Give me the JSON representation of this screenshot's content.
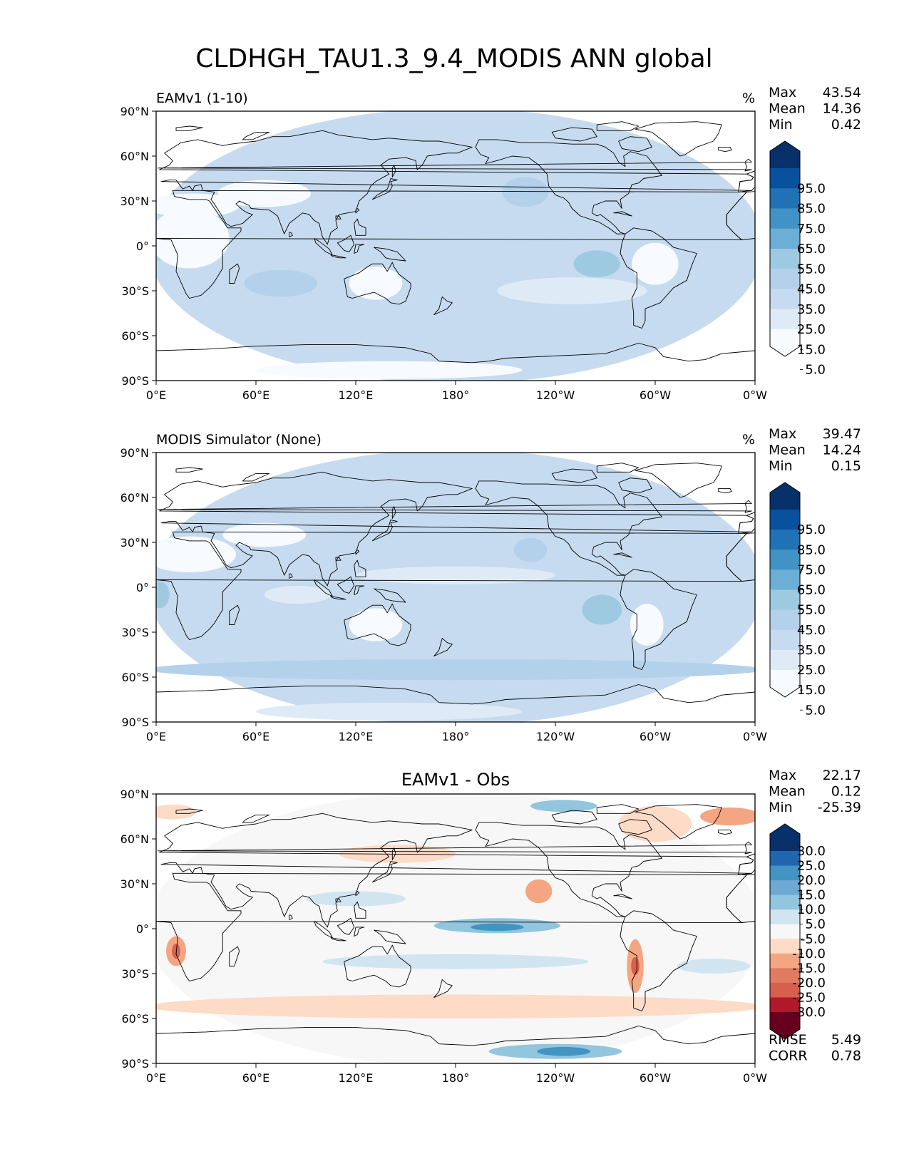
{
  "figure_title": "CLDHGH_TAU1.3_9.4_MODIS ANN global",
  "chart_data": [
    {
      "type": "heatmap",
      "title": "EAMv1 (1-10)",
      "units": "%",
      "stats": [
        {
          "label": "Max",
          "value": "43.54"
        },
        {
          "label": "Mean",
          "value": "14.36"
        },
        {
          "label": "Min",
          "value": "0.42"
        }
      ],
      "xticks": [
        "0°E",
        "60°E",
        "120°E",
        "180°",
        "120°W",
        "60°W",
        "0°W"
      ],
      "yticks": [
        "90°N",
        "60°N",
        "30°N",
        "0°",
        "30°S",
        "60°S",
        "90°S"
      ],
      "xlim": [
        0,
        360
      ],
      "ylim": [
        -90,
        90
      ],
      "colorbar": {
        "levels": [
          "95.0",
          "85.0",
          "75.0",
          "65.0",
          "55.0",
          "45.0",
          "35.0",
          "25.0",
          "15.0",
          "5.0"
        ],
        "colors": [
          "#08306b",
          "#08519c",
          "#2171b5",
          "#4292c6",
          "#6baed6",
          "#9ecae1",
          "#b3d1ea",
          "#c6dbef",
          "#deebf7",
          "#f7fbff"
        ],
        "extend": "both"
      },
      "fields": [
        {
          "lon": 180,
          "lat": 0,
          "rx": 185,
          "ry": 92,
          "color": "#c6dbef"
        },
        {
          "lon": 222,
          "lat": 36,
          "rx": 14,
          "ry": 10,
          "color": "#b3d1ea"
        },
        {
          "lon": 265,
          "lat": -12,
          "rx": 14,
          "ry": 9,
          "color": "#9ecae1"
        },
        {
          "lon": 75,
          "lat": -25,
          "rx": 22,
          "ry": 9,
          "color": "#b3d1ea"
        },
        {
          "lon": 2,
          "lat": 0,
          "rx": 8,
          "ry": 10,
          "color": "#b3d1ea"
        },
        {
          "lon": 20,
          "lat": 5,
          "rx": 24,
          "ry": 20,
          "color": "#f7fbff"
        },
        {
          "lon": 22,
          "lat": 27,
          "rx": 28,
          "ry": 8,
          "color": "#f7fbff"
        },
        {
          "lon": 65,
          "lat": 35,
          "rx": 28,
          "ry": 9,
          "color": "#f7fbff"
        },
        {
          "lon": 132,
          "lat": -25,
          "rx": 16,
          "ry": 11,
          "color": "#f7fbff"
        },
        {
          "lon": 300,
          "lat": -12,
          "rx": 14,
          "ry": 14,
          "color": "#f7fbff"
        },
        {
          "lon": 140,
          "lat": -83,
          "rx": 80,
          "ry": 6,
          "color": "#f7fbff"
        },
        {
          "lon": 250,
          "lat": -30,
          "rx": 45,
          "ry": 9,
          "color": "#deebf7"
        }
      ]
    },
    {
      "type": "heatmap",
      "title": "MODIS Simulator (None)",
      "units": "%",
      "stats": [
        {
          "label": "Max",
          "value": "39.47"
        },
        {
          "label": "Mean",
          "value": "14.24"
        },
        {
          "label": "Min",
          "value": "0.15"
        }
      ],
      "xticks": [
        "0°E",
        "60°E",
        "120°E",
        "180°",
        "120°W",
        "60°W",
        "0°W"
      ],
      "yticks": [
        "90°N",
        "60°N",
        "30°N",
        "0°",
        "30°S",
        "60°S",
        "90°S"
      ],
      "xlim": [
        0,
        360
      ],
      "ylim": [
        -90,
        90
      ],
      "colorbar": {
        "levels": [
          "95.0",
          "85.0",
          "75.0",
          "65.0",
          "55.0",
          "45.0",
          "35.0",
          "25.0",
          "15.0",
          "5.0"
        ],
        "colors": [
          "#08306b",
          "#08519c",
          "#2171b5",
          "#4292c6",
          "#6baed6",
          "#9ecae1",
          "#b3d1ea",
          "#c6dbef",
          "#deebf7",
          "#f7fbff"
        ],
        "extend": "both"
      },
      "fields": [
        {
          "lon": 180,
          "lat": 0,
          "rx": 185,
          "ry": 92,
          "color": "#c6dbef"
        },
        {
          "lon": 180,
          "lat": -55,
          "rx": 185,
          "ry": 7,
          "color": "#b3d1ea"
        },
        {
          "lon": 225,
          "lat": 25,
          "rx": 10,
          "ry": 8,
          "color": "#b3d1ea"
        },
        {
          "lon": 268,
          "lat": -15,
          "rx": 12,
          "ry": 10,
          "color": "#9ecae1"
        },
        {
          "lon": 2,
          "lat": -5,
          "rx": 6,
          "ry": 9,
          "color": "#9ecae1"
        },
        {
          "lon": 20,
          "lat": 22,
          "rx": 28,
          "ry": 12,
          "color": "#f7fbff"
        },
        {
          "lon": 65,
          "lat": 35,
          "rx": 25,
          "ry": 8,
          "color": "#f7fbff"
        },
        {
          "lon": 85,
          "lat": -5,
          "rx": 20,
          "ry": 6,
          "color": "#deebf7"
        },
        {
          "lon": 132,
          "lat": -25,
          "rx": 16,
          "ry": 11,
          "color": "#f7fbff"
        },
        {
          "lon": 180,
          "lat": 8,
          "rx": 60,
          "ry": 6,
          "color": "#deebf7"
        },
        {
          "lon": 295,
          "lat": -25,
          "rx": 10,
          "ry": 14,
          "color": "#f7fbff"
        },
        {
          "lon": 140,
          "lat": -83,
          "rx": 80,
          "ry": 6,
          "color": "#deebf7"
        }
      ]
    },
    {
      "type": "heatmap",
      "title": "EAMv1 - Obs",
      "units": "",
      "stats": [
        {
          "label": "Max",
          "value": "22.17"
        },
        {
          "label": "Mean",
          "value": "0.12"
        },
        {
          "label": "Min",
          "value": "-25.39"
        }
      ],
      "metrics": [
        {
          "label": "RMSE",
          "value": "5.49"
        },
        {
          "label": "CORR",
          "value": "0.78"
        }
      ],
      "xticks": [
        "0°E",
        "60°E",
        "120°E",
        "180°",
        "120°W",
        "60°W",
        "0°W"
      ],
      "yticks": [
        "90°N",
        "60°N",
        "30°N",
        "0°",
        "30°S",
        "60°S",
        "90°S"
      ],
      "xlim": [
        0,
        360
      ],
      "ylim": [
        -90,
        90
      ],
      "colorbar": {
        "levels": [
          "30.0",
          "25.0",
          "20.0",
          "15.0",
          "10.0",
          "5.0",
          "-5.0",
          "-10.0",
          "-15.0",
          "-20.0",
          "-25.0",
          "-30.0"
        ],
        "colors": [
          "#08306b",
          "#2166ac",
          "#4393c3",
          "#6ea8d3",
          "#92c5de",
          "#d1e5f0",
          "#f7f7f7",
          "#fddbc7",
          "#f4a582",
          "#e07b62",
          "#d6604d",
          "#b2182b",
          "#67001f"
        ],
        "extend": "both"
      },
      "fields": [
        {
          "lon": 180,
          "lat": 0,
          "rx": 185,
          "ry": 92,
          "color": "#f7f7f7"
        },
        {
          "lon": 180,
          "lat": -52,
          "rx": 185,
          "ry": 8,
          "color": "#fddbc7"
        },
        {
          "lon": 145,
          "lat": 50,
          "rx": 35,
          "ry": 6,
          "color": "#fddbc7"
        },
        {
          "lon": 10,
          "lat": 78,
          "rx": 14,
          "ry": 5,
          "color": "#fddbc7"
        },
        {
          "lon": 300,
          "lat": 70,
          "rx": 22,
          "ry": 12,
          "color": "#fddbc7"
        },
        {
          "lon": 345,
          "lat": 75,
          "rx": 18,
          "ry": 6,
          "color": "#f4a582"
        },
        {
          "lon": 245,
          "lat": 82,
          "rx": 20,
          "ry": 4,
          "color": "#92c5de"
        },
        {
          "lon": 205,
          "lat": 2,
          "rx": 38,
          "ry": 5,
          "color": "#92c5de"
        },
        {
          "lon": 205,
          "lat": 1,
          "rx": 16,
          "ry": 2.5,
          "color": "#4393c3"
        },
        {
          "lon": 180,
          "lat": -22,
          "rx": 80,
          "ry": 5,
          "color": "#d1e5f0"
        },
        {
          "lon": 120,
          "lat": 20,
          "rx": 30,
          "ry": 5,
          "color": "#d1e5f0"
        },
        {
          "lon": 12,
          "lat": -15,
          "rx": 6,
          "ry": 10,
          "color": "#f4a582"
        },
        {
          "lon": 12,
          "lat": -15,
          "rx": 2.5,
          "ry": 5,
          "color": "#d6604d"
        },
        {
          "lon": 288,
          "lat": -25,
          "rx": 5,
          "ry": 18,
          "color": "#f4a582"
        },
        {
          "lon": 288,
          "lat": -25,
          "rx": 2.5,
          "ry": 6,
          "color": "#d6604d"
        },
        {
          "lon": 230,
          "lat": 25,
          "rx": 8,
          "ry": 8,
          "color": "#f4a582"
        },
        {
          "lon": 240,
          "lat": -82,
          "rx": 40,
          "ry": 5,
          "color": "#92c5de"
        },
        {
          "lon": 245,
          "lat": -82,
          "rx": 16,
          "ry": 3,
          "color": "#4393c3"
        },
        {
          "lon": 335,
          "lat": -25,
          "rx": 22,
          "ry": 5,
          "color": "#d1e5f0"
        }
      ]
    }
  ]
}
